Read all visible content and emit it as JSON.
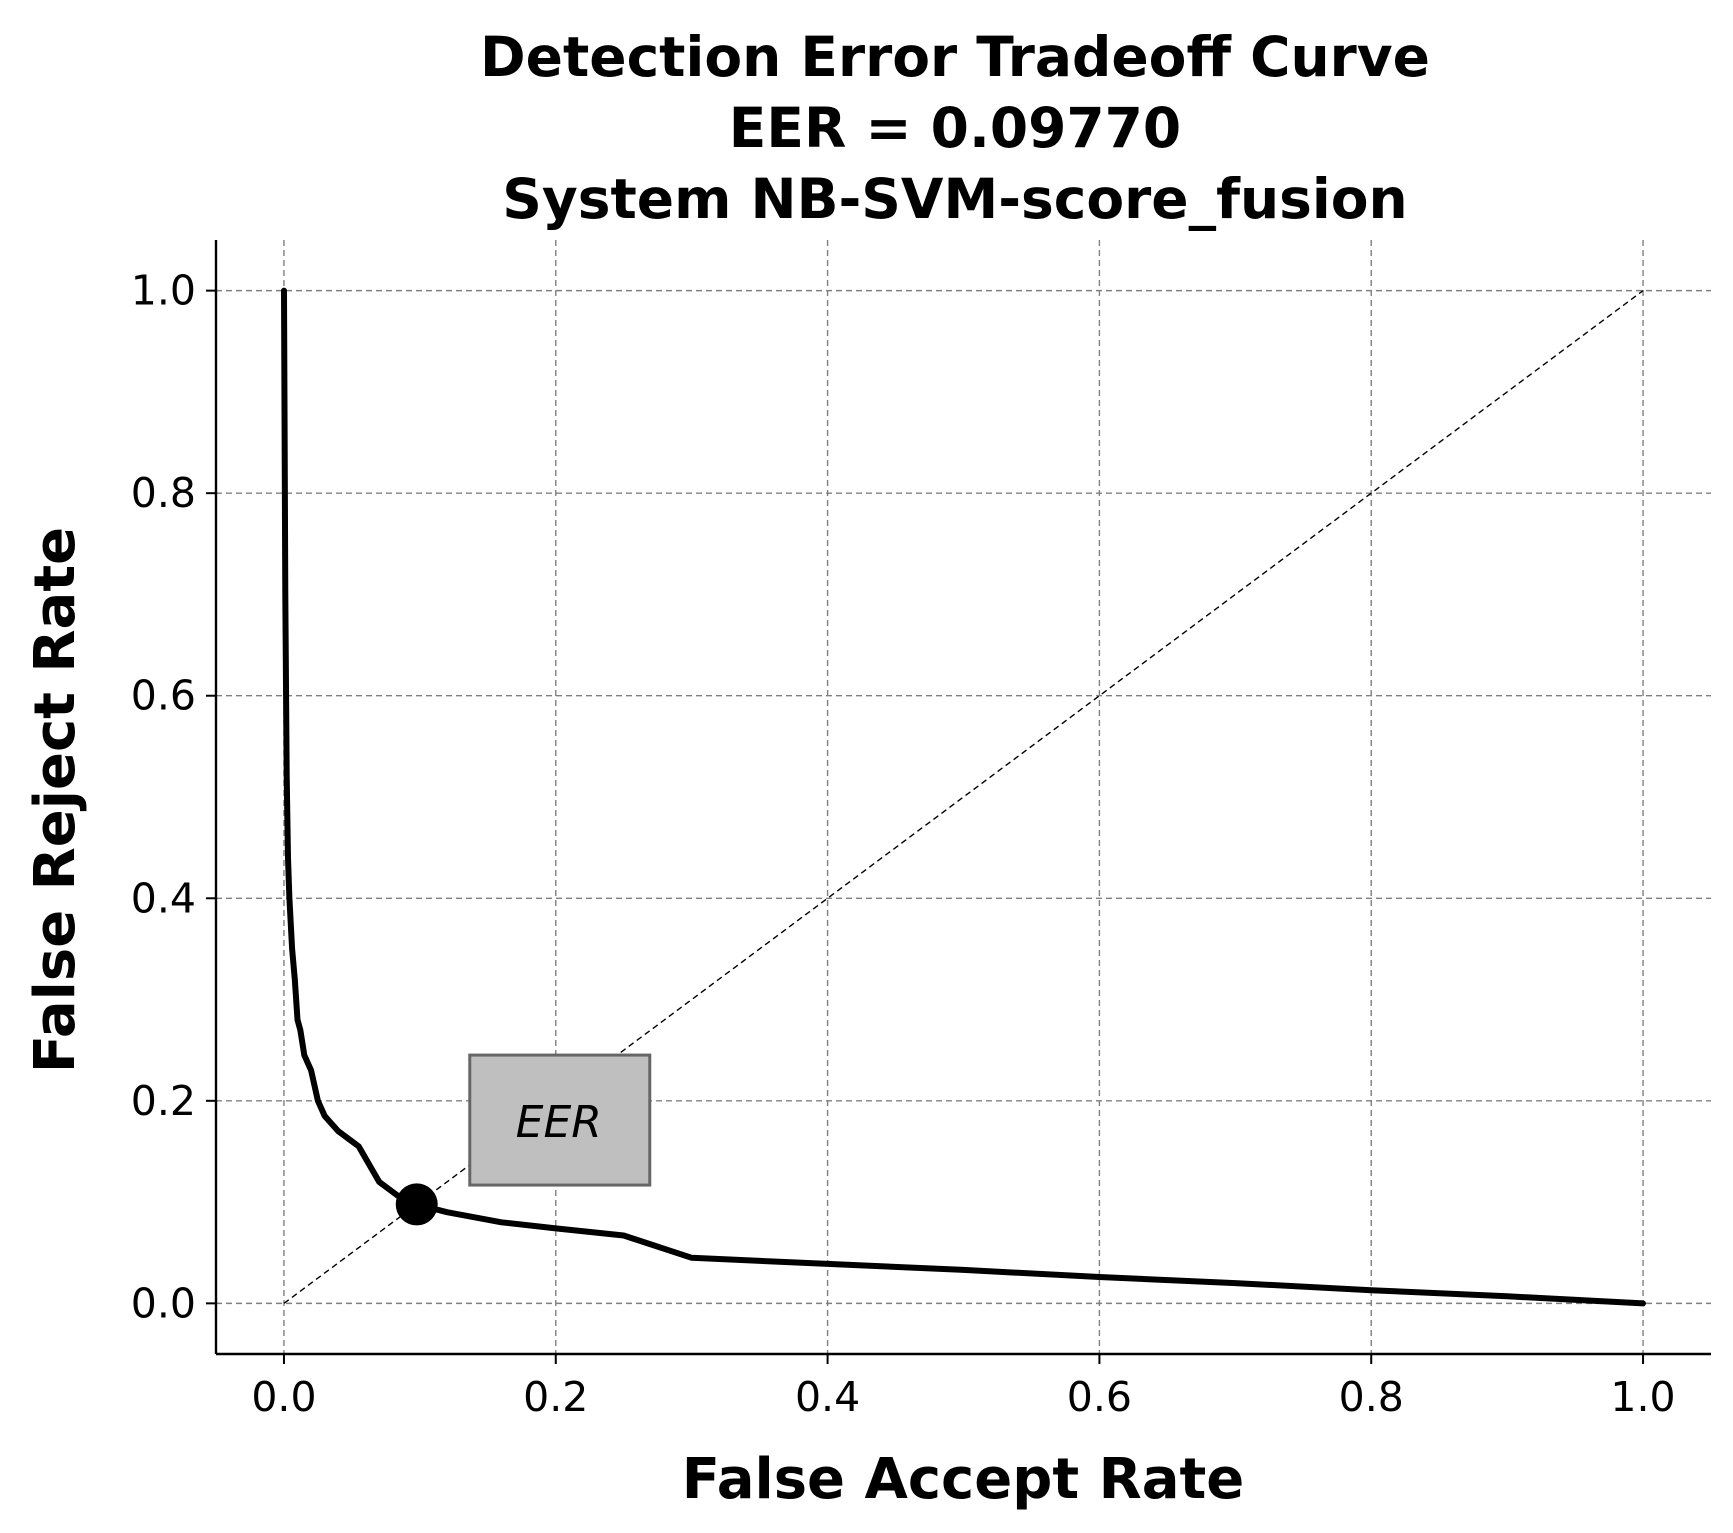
{
  "chart_data": {
    "type": "line",
    "title_lines": [
      "Detection Error Tradeoff Curve",
      "EER = 0.09770",
      "System NB-SVM-score_fusion"
    ],
    "xlabel": "False Accept Rate",
    "ylabel": "False Reject Rate",
    "xlim": [
      -0.05,
      1.05
    ],
    "ylim": [
      -0.05,
      1.05
    ],
    "xticks": [
      0.0,
      0.2,
      0.4,
      0.6,
      0.8,
      1.0
    ],
    "yticks": [
      0.0,
      0.2,
      0.4,
      0.6,
      0.8,
      1.0
    ],
    "xtick_labels": [
      "0.0",
      "0.2",
      "0.4",
      "0.6",
      "0.8",
      "1.0"
    ],
    "ytick_labels": [
      "0.0",
      "0.2",
      "0.4",
      "0.6",
      "0.8",
      "1.0"
    ],
    "grid": true,
    "series": [
      {
        "x": [
          0.0,
          0.001,
          0.002,
          0.003,
          0.004,
          0.006,
          0.008,
          0.01,
          0.012,
          0.015,
          0.02,
          0.025,
          0.03,
          0.04,
          0.05,
          0.055,
          0.07,
          0.085,
          0.0977,
          0.12,
          0.16,
          0.2,
          0.25,
          0.3,
          0.4,
          0.5,
          0.6,
          0.7,
          0.8,
          0.9,
          1.0
        ],
        "y": [
          1.0,
          0.7,
          0.52,
          0.44,
          0.4,
          0.35,
          0.32,
          0.28,
          0.27,
          0.245,
          0.23,
          0.2,
          0.185,
          0.17,
          0.16,
          0.155,
          0.12,
          0.105,
          0.0977,
          0.09,
          0.08,
          0.074,
          0.067,
          0.045,
          0.039,
          0.033,
          0.026,
          0.02,
          0.013,
          0.007,
          0.0
        ],
        "color": "#000000"
      }
    ],
    "reference_line": {
      "x": [
        0.0,
        1.0
      ],
      "y": [
        0.0,
        1.0
      ],
      "style": "dashed"
    },
    "eer_point": {
      "x": 0.0977,
      "y": 0.0977
    },
    "annotation": {
      "text": "EER",
      "x": 0.2,
      "y": 0.18,
      "box_color": "#bfbfbf"
    }
  }
}
